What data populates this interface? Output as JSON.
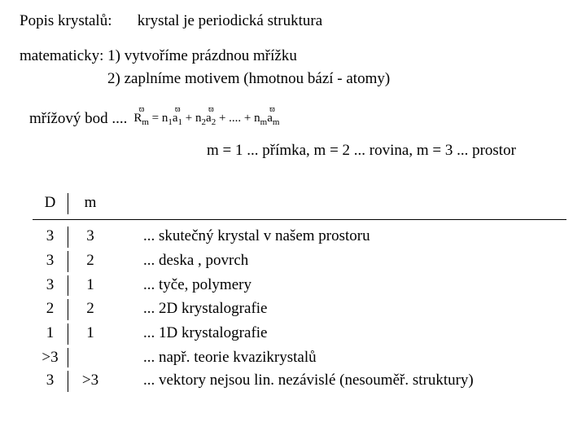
{
  "title_label": "Popis krystalů:",
  "title_text": "krystal je periodická struktura",
  "math_label": "matematicky:",
  "math_step1": "1) vytvoříme prázdnou mřížku",
  "math_step2": "2) zaplníme motivem (hmotnou bází - atomy)",
  "lattice_label": "mřížový bod ....",
  "formula": {
    "R": "R",
    "eq": "=",
    "n": "n",
    "a": "a",
    "plus": "+",
    "dots": "....",
    "s1": "1",
    "s2": "2",
    "sm": "m"
  },
  "m_line": "m = 1 ... přímka, m = 2 ... rovina, m = 3 ... prostor",
  "table": {
    "head_D": "D",
    "head_m": "m",
    "rows": [
      {
        "D": "3",
        "m": "3",
        "desc": "... skutečný krystal v našem prostoru"
      },
      {
        "D": "3",
        "m": "2",
        "desc": "... deska , povrch"
      },
      {
        "D": "3",
        "m": "1",
        "desc": "... tyče, polymery"
      },
      {
        "D": "2",
        "m": "2",
        "desc": "... 2D krystalografie"
      },
      {
        "D": "1",
        "m": "1",
        "desc": "... 1D krystalografie"
      },
      {
        "D": ">3",
        "m": "",
        "desc": "... např. teorie kvazikrystalů"
      },
      {
        "D": "3",
        "m": ">3",
        "desc": "... vektory nejsou lin. nezávislé (nesouměř. struktury)"
      }
    ]
  },
  "colors": {
    "text": "#000000",
    "background": "#ffffff",
    "border": "#000000"
  },
  "typography": {
    "base_font": "Times New Roman",
    "base_size_pt": 14,
    "formula_size_pt": 11
  }
}
